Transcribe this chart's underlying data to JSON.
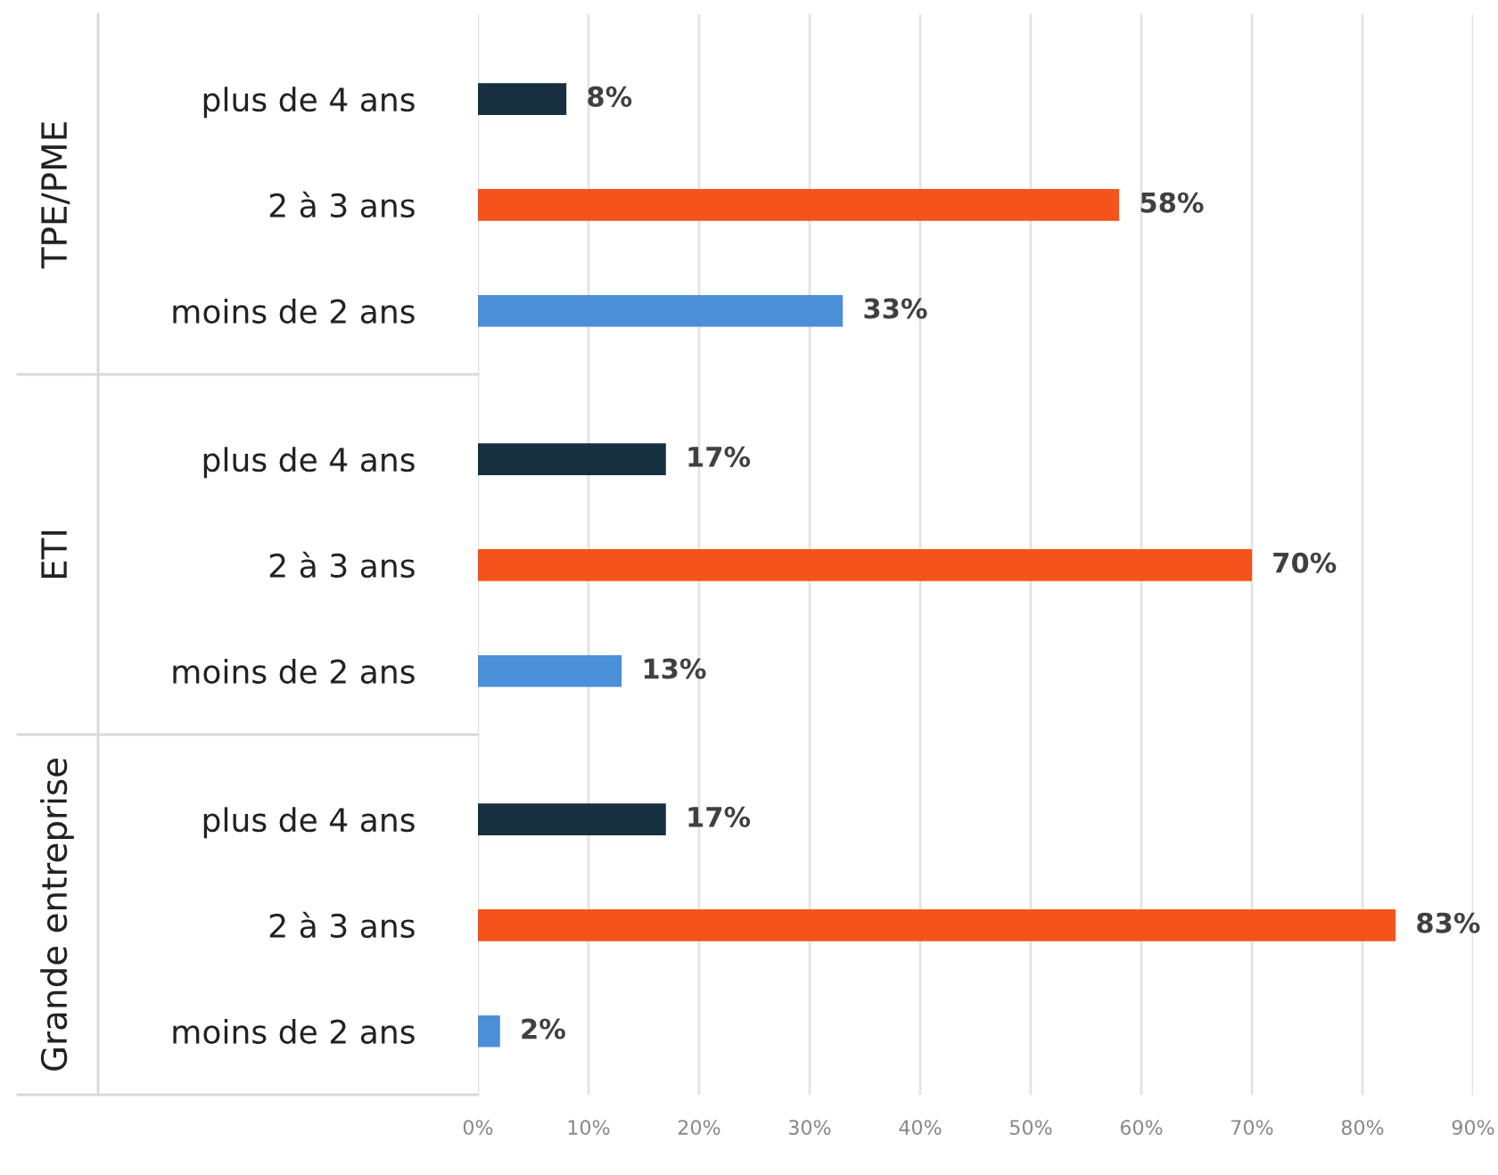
{
  "chart_data": [
    {
      "type": "bar",
      "orientation": "horizontal",
      "title": "TPE/PME",
      "categories": [
        "plus de 4 ans",
        "2 à 3 ans",
        "moins de 2 ans"
      ],
      "values": [
        8,
        58,
        33
      ],
      "colors": [
        "#17303f",
        "#f4531c",
        "#4a8fd8"
      ],
      "value_labels": [
        "8%",
        "58%",
        "33%"
      ],
      "xlim": [
        0,
        90
      ],
      "grid": "x",
      "tick_labels": "y"
    },
    {
      "type": "bar",
      "orientation": "horizontal",
      "title": "ETI",
      "categories": [
        "plus de 4 ans",
        "2 à 3 ans",
        "moins de 2 ans"
      ],
      "values": [
        17,
        70,
        13
      ],
      "colors": [
        "#17303f",
        "#f4531c",
        "#4a8fd8"
      ],
      "value_labels": [
        "17%",
        "70%",
        "13%"
      ],
      "xlim": [
        0,
        90
      ],
      "grid": "x",
      "tick_labels": "y"
    },
    {
      "type": "bar",
      "orientation": "horizontal",
      "title": "Grande entreprise",
      "categories": [
        "plus de 4 ans",
        "2 à 3 ans",
        "moins de 2 ans"
      ],
      "values": [
        17,
        83,
        2
      ],
      "colors": [
        "#17303f",
        "#f4531c",
        "#4a8fd8"
      ],
      "value_labels": [
        "17%",
        "83%",
        "2%"
      ],
      "xlim": [
        0,
        90
      ],
      "xticks": [
        {
          "value": 0,
          "label": "0%"
        },
        {
          "value": 10,
          "label": "10%"
        },
        {
          "value": 20,
          "label": "20%"
        },
        {
          "value": 30,
          "label": "30%"
        },
        {
          "value": 40,
          "label": "40%"
        },
        {
          "value": 50,
          "label": "50%"
        },
        {
          "value": 60,
          "label": "60%"
        },
        {
          "value": 70,
          "label": "70%"
        },
        {
          "value": 80,
          "label": "80%"
        },
        {
          "value": 90,
          "label": "90%"
        }
      ],
      "grid": "x"
    }
  ]
}
